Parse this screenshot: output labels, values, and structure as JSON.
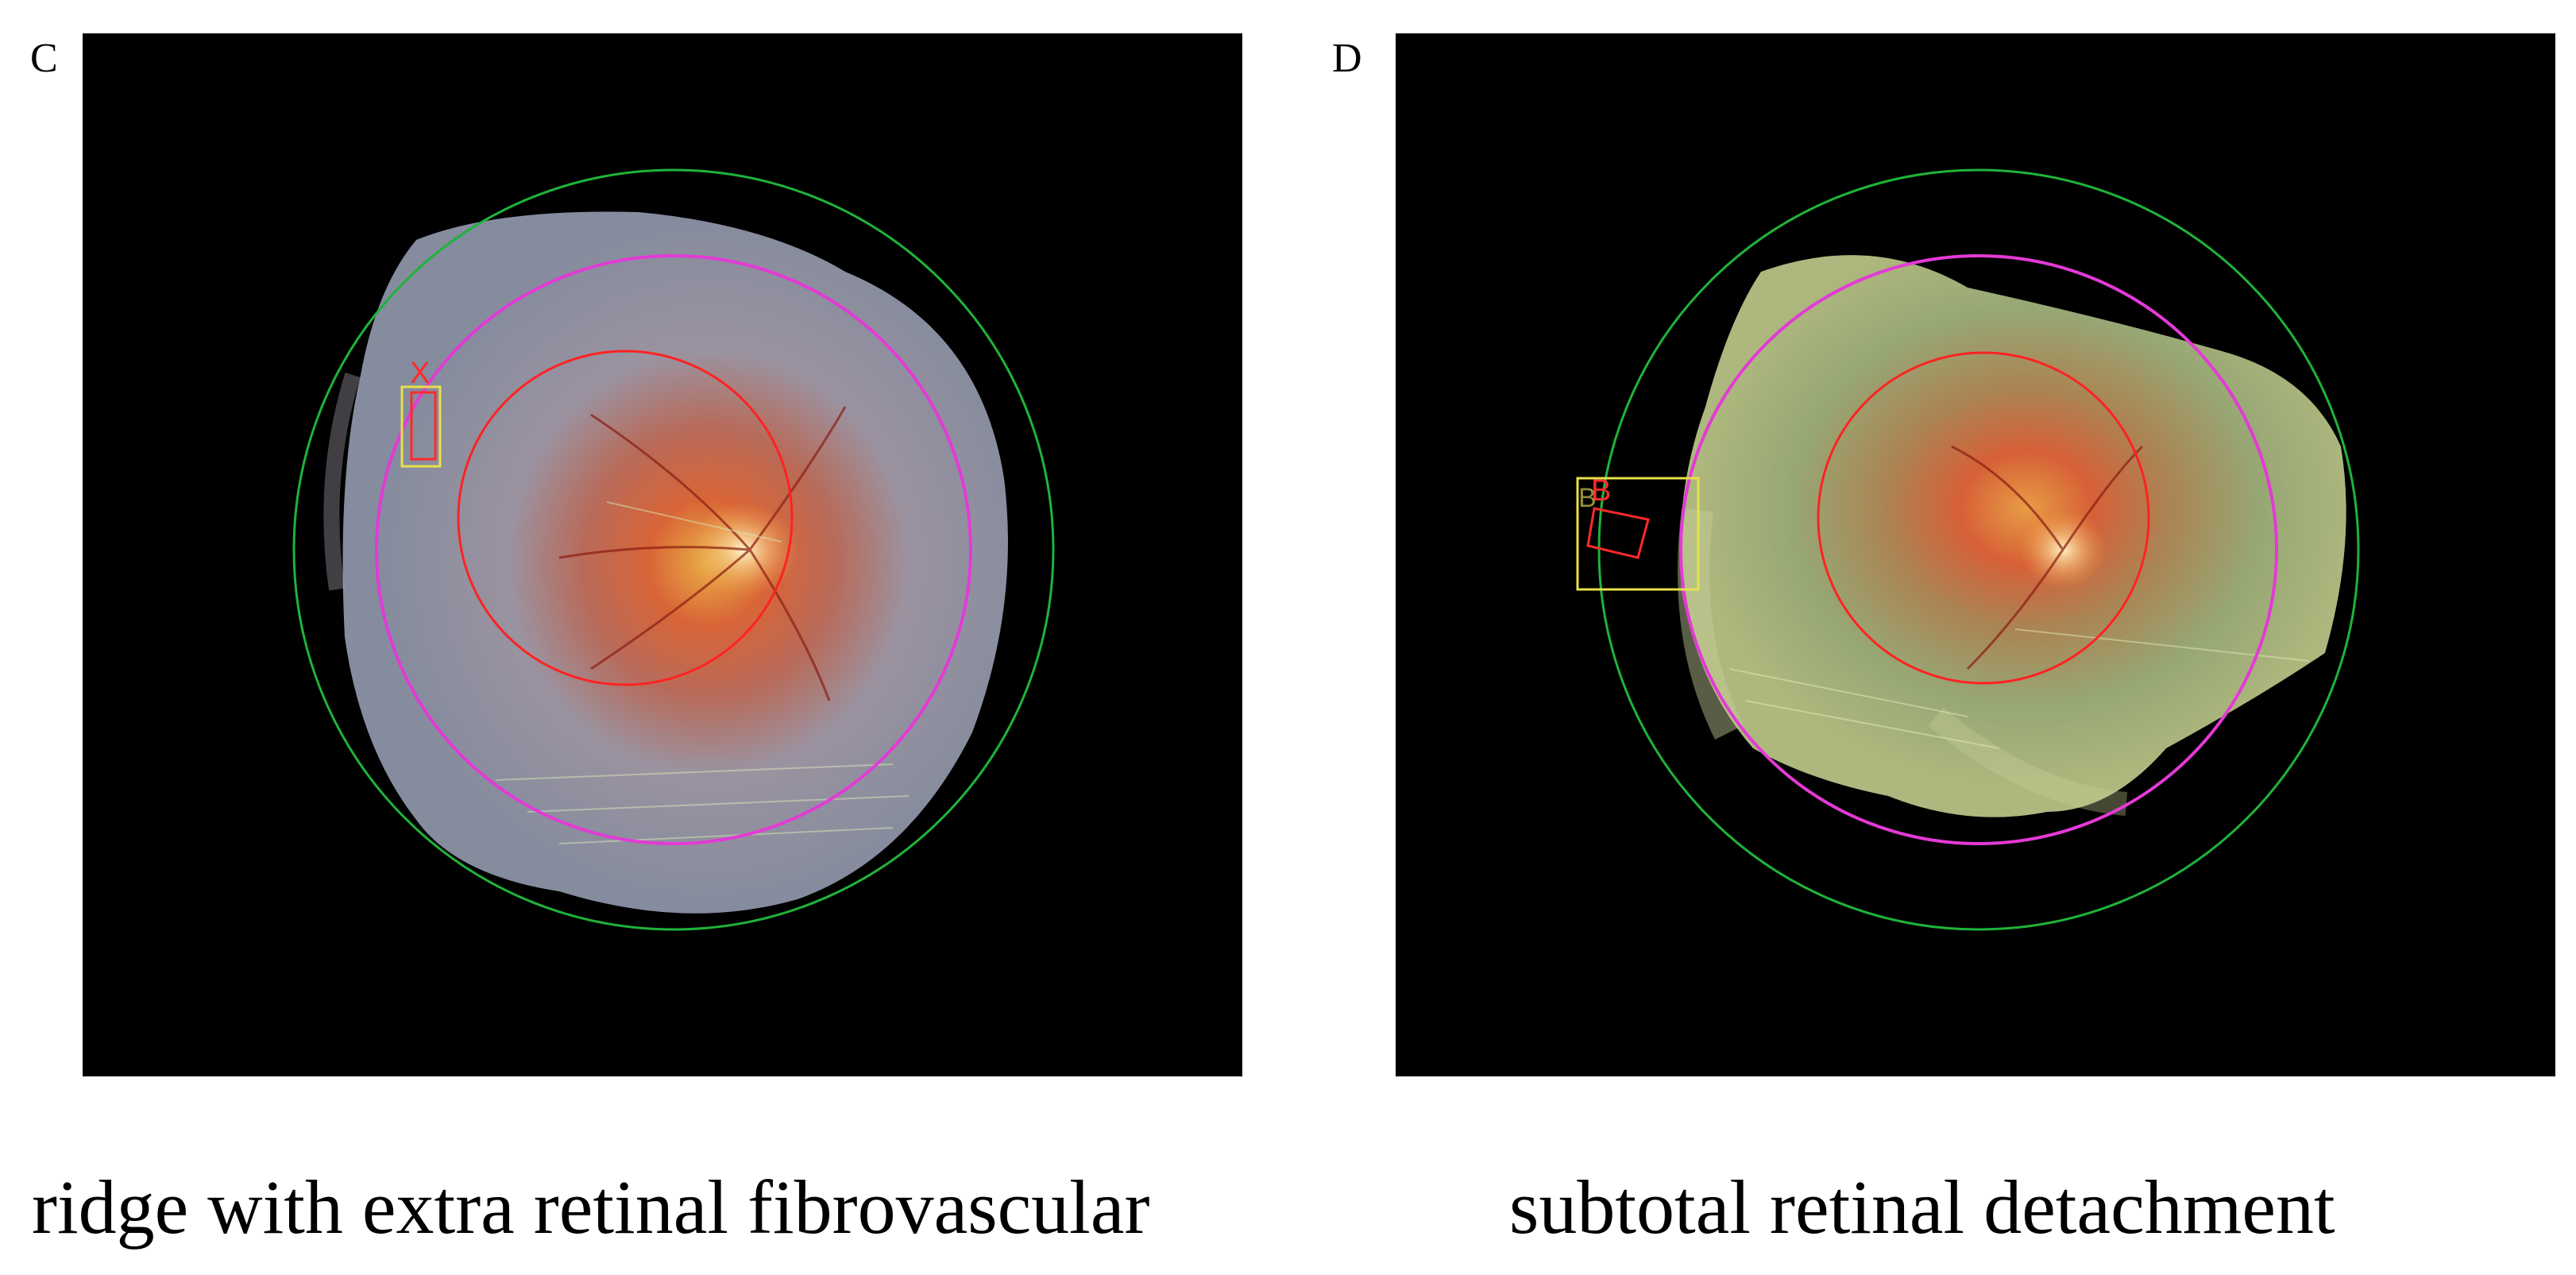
{
  "panels": [
    {
      "letter": "C",
      "caption": "ridge with extra retinal fibrovascular",
      "annotations": [
        {
          "label": "X",
          "color": "#ff2a2a"
        }
      ],
      "colors": {
        "outer_ring": "#1fb33a",
        "middle_ring": "#e33ad6",
        "inner_ring": "#ff2222",
        "box_outer": "#e8e04a",
        "box_inner": "#ff2a2a"
      }
    },
    {
      "letter": "D",
      "caption": "subtotal retinal detachment",
      "annotations": [
        {
          "label": "B",
          "color": "#ff2a2a"
        },
        {
          "label": "B",
          "color": "#b8b04a"
        }
      ],
      "colors": {
        "outer_ring": "#1fb33a",
        "middle_ring": "#e33ad6",
        "inner_ring": "#ff2222",
        "box_outer": "#e8e04a",
        "box_inner": "#ff2a2a"
      }
    }
  ]
}
